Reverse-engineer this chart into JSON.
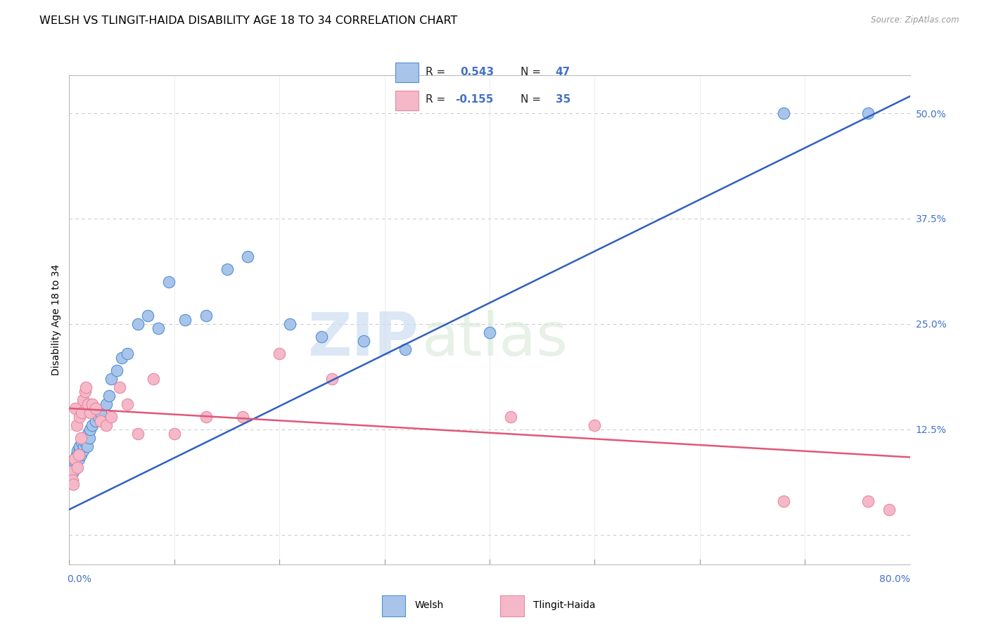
{
  "title": "WELSH VS TLINGIT-HAIDA DISABILITY AGE 18 TO 34 CORRELATION CHART",
  "source": "Source: ZipAtlas.com",
  "ylabel": "Disability Age 18 to 34",
  "xmin": 0.0,
  "xmax": 0.8,
  "ymin": -0.035,
  "ymax": 0.545,
  "watermark_zip": "ZIP",
  "watermark_atlas": "atlas",
  "welsh_color": "#a8c4e8",
  "tlingit_color": "#f5b8c8",
  "welsh_line_color": "#3060c0",
  "tlingit_line_color": "#e05878",
  "welsh_edge_color": "#5090d8",
  "tlingit_edge_color": "#e888a0",
  "welsh_R": 0.543,
  "welsh_N": 47,
  "tlingit_R": -0.155,
  "tlingit_N": 35,
  "welsh_scatter_x": [
    0.002,
    0.003,
    0.004,
    0.005,
    0.006,
    0.007,
    0.007,
    0.008,
    0.009,
    0.009,
    0.01,
    0.01,
    0.011,
    0.012,
    0.013,
    0.014,
    0.015,
    0.016,
    0.017,
    0.018,
    0.019,
    0.02,
    0.022,
    0.025,
    0.028,
    0.03,
    0.035,
    0.038,
    0.04,
    0.045,
    0.05,
    0.055,
    0.065,
    0.075,
    0.085,
    0.095,
    0.11,
    0.13,
    0.15,
    0.17,
    0.21,
    0.24,
    0.28,
    0.32,
    0.4,
    0.68,
    0.76
  ],
  "welsh_scatter_y": [
    0.08,
    0.085,
    0.075,
    0.09,
    0.085,
    0.095,
    0.08,
    0.1,
    0.09,
    0.095,
    0.1,
    0.105,
    0.095,
    0.11,
    0.1,
    0.105,
    0.11,
    0.115,
    0.105,
    0.12,
    0.115,
    0.125,
    0.13,
    0.135,
    0.14,
    0.145,
    0.155,
    0.165,
    0.185,
    0.195,
    0.21,
    0.215,
    0.25,
    0.26,
    0.245,
    0.3,
    0.255,
    0.26,
    0.315,
    0.33,
    0.25,
    0.235,
    0.23,
    0.22,
    0.24,
    0.5,
    0.5
  ],
  "tlingit_scatter_x": [
    0.002,
    0.003,
    0.004,
    0.005,
    0.006,
    0.007,
    0.008,
    0.009,
    0.01,
    0.011,
    0.012,
    0.013,
    0.015,
    0.016,
    0.018,
    0.02,
    0.022,
    0.025,
    0.03,
    0.035,
    0.04,
    0.048,
    0.055,
    0.065,
    0.08,
    0.1,
    0.13,
    0.165,
    0.2,
    0.25,
    0.42,
    0.5,
    0.68,
    0.76,
    0.78
  ],
  "tlingit_scatter_y": [
    0.075,
    0.065,
    0.06,
    0.09,
    0.15,
    0.13,
    0.08,
    0.095,
    0.14,
    0.115,
    0.145,
    0.16,
    0.17,
    0.175,
    0.155,
    0.145,
    0.155,
    0.15,
    0.135,
    0.13,
    0.14,
    0.175,
    0.155,
    0.12,
    0.185,
    0.12,
    0.14,
    0.14,
    0.215,
    0.185,
    0.14,
    0.13,
    0.04,
    0.04,
    0.03
  ],
  "welsh_line_x": [
    0.0,
    0.8
  ],
  "welsh_line_y": [
    0.03,
    0.52
  ],
  "tlingit_line_x": [
    0.0,
    0.8
  ],
  "tlingit_line_y": [
    0.15,
    0.092
  ],
  "yticks": [
    0.0,
    0.125,
    0.25,
    0.375,
    0.5
  ],
  "ytick_labels": [
    "",
    "12.5%",
    "25.0%",
    "37.5%",
    "50.0%"
  ],
  "background_color": "#ffffff",
  "grid_color": "#cccccc",
  "title_fontsize": 11.5,
  "tick_color": "#4472c4",
  "tick_fontsize": 10
}
